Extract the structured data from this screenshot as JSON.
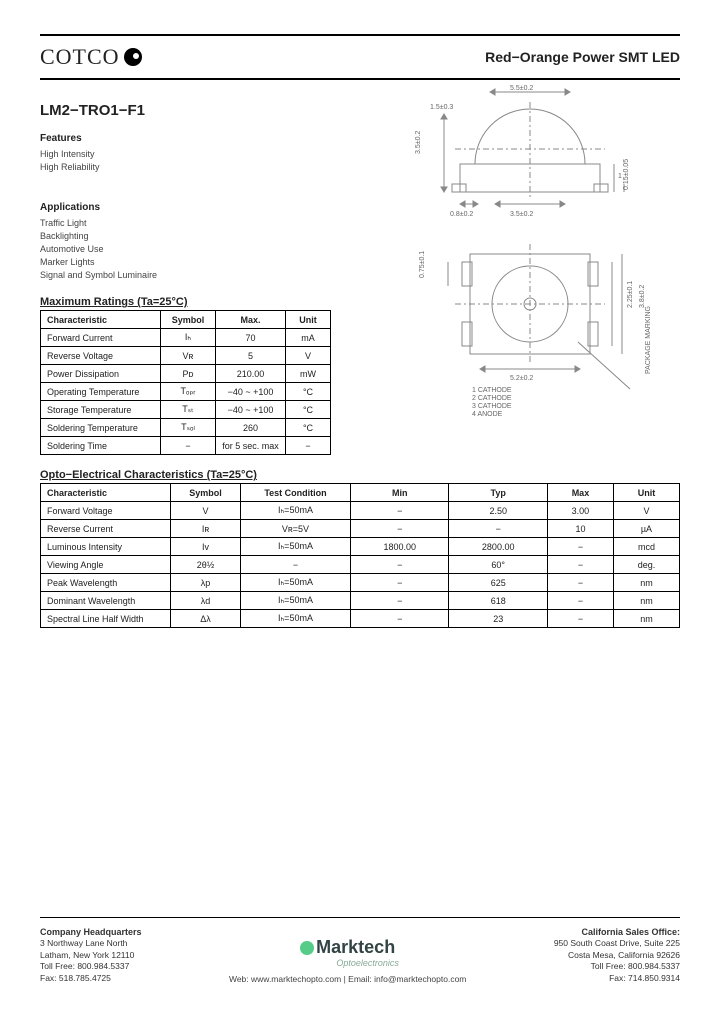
{
  "header": {
    "brand": "COTCO",
    "product_title": "Red−Orange Power SMT LED"
  },
  "part_number": "LM2−TRO1−F1",
  "features": {
    "heading": "Features",
    "items": [
      "High Intensity",
      "High Reliability"
    ]
  },
  "applications": {
    "heading": "Applications",
    "items": [
      "Traffic Light",
      "Backlighting",
      "Automotive Use",
      "Marker Lights",
      "Signal and Symbol Luminaire"
    ]
  },
  "max_ratings": {
    "title": "Maximum Ratings (Ta=25°C)",
    "columns": [
      "Characteristic",
      "Symbol",
      "Max.",
      "Unit"
    ],
    "rows": [
      [
        "Forward Current",
        "Iₕ",
        "70",
        "mA"
      ],
      [
        "Reverse Voltage",
        "Vʀ",
        "5",
        "V"
      ],
      [
        "Power Dissipation",
        "Pᴅ",
        "210.00",
        "mW"
      ],
      [
        "Operating Temperature",
        "Tₒₚᵣ",
        "−40 ~ +100",
        "°C"
      ],
      [
        "Storage Temperature",
        "Tₛₜ",
        "−40 ~ +100",
        "°C"
      ],
      [
        "Soldering Temperature",
        "Tₛₒₗ",
        "260",
        "°C"
      ],
      [
        "Soldering Time",
        "−",
        "for 5 sec. max",
        "−"
      ]
    ]
  },
  "opto": {
    "title": "Opto−Electrical Characteristics (Ta=25°C)",
    "columns": [
      "Characteristic",
      "Symbol",
      "Test Condition",
      "Min",
      "Typ",
      "Max",
      "Unit"
    ],
    "rows": [
      [
        "Forward Voltage",
        "V꟰",
        "Iₕ=50mA",
        "−",
        "2.50",
        "3.00",
        "V"
      ],
      [
        "Reverse Current",
        "Iʀ",
        "Vʀ=5V",
        "−",
        "−",
        "10",
        "µA"
      ],
      [
        "Luminous Intensity",
        "Iv",
        "Iₕ=50mA",
        "1800.00",
        "2800.00",
        "−",
        "mcd"
      ],
      [
        "Viewing Angle",
        "2θ½",
        "−",
        "−",
        "60°",
        "−",
        "deg."
      ],
      [
        "Peak Wavelength",
        "λp",
        "Iₕ=50mA",
        "−",
        "625",
        "−",
        "nm"
      ],
      [
        "Dominant Wavelength",
        "λd",
        "Iₕ=50mA",
        "−",
        "618",
        "−",
        "nm"
      ],
      [
        "Spectral Line Half Width",
        "Δλ",
        "Iₕ=50mA",
        "−",
        "23",
        "−",
        "nm"
      ]
    ]
  },
  "diagram": {
    "top_dim": "5.5±0.2",
    "side_dim": "3.5±0.2",
    "h_dim": "1.5±0.3",
    "pad_dim": "0.8±0.2",
    "pad_dim2": "3.5±0.2",
    "foot_h1": "0.15±0.05",
    "foot_h2": "1",
    "bot_w": "5.2±0.2",
    "bot_h1": "0.75±0.1",
    "bot_h2": "2.25±0.1",
    "bot_h3": "3.8±0.2",
    "pin1": "1  CATHODE",
    "pin2": "2  CATHODE",
    "pin3": "3  CATHODE",
    "pin4": "4  ANODE",
    "marking": "PACKAGE MARKING",
    "stroke": "#666",
    "text_color": "#555",
    "fontsize": 7
  },
  "footer": {
    "hq_head": "Company Headquarters",
    "hq_lines": [
      "3 Northway Lane North",
      "Latham, New York 12110",
      "Toll Free: 800.984.5337",
      "Fax: 518.785.4725"
    ],
    "ca_head": "California Sales Office:",
    "ca_lines": [
      "950 South Coast Drive, Suite 225",
      "Costa Mesa, California 92626",
      "Toll Free: 800.984.5337",
      "Fax: 714.850.9314"
    ],
    "center_brand": "Marktech",
    "center_sub": "Optoelectronics",
    "links": "Web: www.marktechopto.com | Email: info@marktechopto.com"
  }
}
